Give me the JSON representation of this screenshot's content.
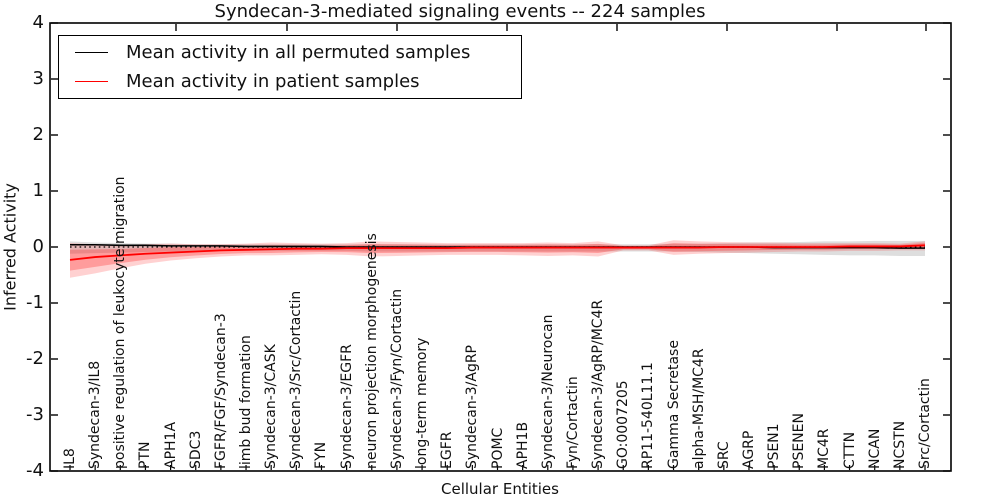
{
  "chart_data": {
    "type": "line",
    "title": "Syndecan-3-mediated signaling events -- 224 samples",
    "xlabel": "Cellular Entities",
    "ylabel": "Inferred Activity",
    "ylim": [
      -4,
      4
    ],
    "yticks": [
      4,
      3,
      2,
      1,
      0,
      -1,
      -2,
      -3,
      -4
    ],
    "grid": false,
    "legend_position": "upper left",
    "zero_line_style": "dotted",
    "categories": [
      "IL8",
      "Syndecan-3/IL8",
      "positive regulation of leukocyte migration",
      "PTN",
      "APH1A",
      "SDC3",
      "FGFR/FGF/Syndecan-3",
      "limb bud formation",
      "Syndecan-3/CASK",
      "Syndecan-3/Src/Cortactin",
      "FYN",
      "Syndecan-3/EGFR",
      "neuron projection morphogenesis",
      "Syndecan-3/Fyn/Cortactin",
      "long-term memory",
      "EGFR",
      "Syndecan-3/AgRP",
      "POMC",
      "APH1B",
      "Syndecan-3/Neurocan",
      "Fyn/Cortactin",
      "Syndecan-3/AgRP/MC4R",
      "GO:0007205",
      "RP11-540L11.1",
      "Gamma Secretase",
      "alpha-MSH/MC4R",
      "SRC",
      "AGRP",
      "PSEN1",
      "PSENEN",
      "MC4R",
      "CTTN",
      "NCAN",
      "NCSTN",
      "Src/Cortactin"
    ],
    "series": [
      {
        "name": "Mean activity in all permuted samples",
        "color": "#000000",
        "band_color": "rgba(0,0,0,0.13)",
        "values": [
          0.04,
          0.04,
          0.03,
          0.03,
          0.02,
          0.02,
          0.02,
          0.01,
          0.01,
          0.01,
          0.01,
          0,
          0,
          0,
          0,
          0,
          0,
          0,
          0,
          0,
          0,
          0,
          0,
          0,
          0,
          0,
          0,
          0,
          -0.01,
          -0.01,
          -0.01,
          -0.01,
          -0.01,
          -0.02,
          -0.02
        ],
        "band_upper": [
          0.1,
          0.08,
          0.07,
          0.06,
          0.06,
          0.05,
          0.05,
          0.05,
          0.05,
          0.05,
          0.05,
          0.05,
          0.05,
          0.05,
          0.05,
          0.05,
          0.05,
          0.05,
          0.05,
          0.05,
          0.05,
          0.05,
          0.05,
          0.05,
          0.06,
          0.06,
          0.07,
          0.08,
          0.08,
          0.09,
          0.1,
          0.1,
          0.11,
          0.11,
          0.11
        ],
        "band_lower": [
          -0.12,
          -0.11,
          -0.1,
          -0.09,
          -0.08,
          -0.08,
          -0.07,
          -0.07,
          -0.07,
          -0.07,
          -0.07,
          -0.07,
          -0.08,
          -0.08,
          -0.08,
          -0.08,
          -0.08,
          -0.08,
          -0.08,
          -0.08,
          -0.08,
          -0.08,
          -0.08,
          -0.08,
          -0.08,
          -0.09,
          -0.1,
          -0.11,
          -0.12,
          -0.13,
          -0.14,
          -0.15,
          -0.15,
          -0.16,
          -0.16
        ]
      },
      {
        "name": "Mean activity in patient samples",
        "color": "#ff0000",
        "band_color": "rgba(255,0,0,0.18)",
        "values": [
          -0.23,
          -0.18,
          -0.15,
          -0.12,
          -0.1,
          -0.08,
          -0.06,
          -0.05,
          -0.04,
          -0.03,
          -0.03,
          -0.02,
          -0.02,
          -0.02,
          -0.02,
          -0.02,
          -0.01,
          -0.01,
          -0.01,
          -0.01,
          -0.01,
          -0.01,
          -0.01,
          -0.01,
          -0.01,
          -0.01,
          0,
          0,
          0,
          0,
          0,
          0.01,
          0.01,
          0.01,
          0.03
        ],
        "band_upper": [
          0.07,
          0.05,
          0.04,
          0.05,
          0.06,
          0.05,
          0.05,
          0.06,
          0.08,
          0.07,
          0.06,
          0.07,
          0.1,
          0.09,
          0.08,
          0.07,
          0.07,
          0.07,
          0.07,
          0.08,
          0.07,
          0.1,
          0.03,
          0.03,
          0.12,
          0.1,
          0.09,
          0.08,
          0.08,
          0.07,
          0.07,
          0.07,
          0.07,
          0.06,
          0.1
        ],
        "band_lower": [
          -0.55,
          -0.47,
          -0.38,
          -0.3,
          -0.24,
          -0.2,
          -0.17,
          -0.15,
          -0.15,
          -0.14,
          -0.13,
          -0.14,
          -0.17,
          -0.16,
          -0.15,
          -0.14,
          -0.14,
          -0.14,
          -0.15,
          -0.16,
          -0.15,
          -0.17,
          -0.06,
          -0.06,
          -0.14,
          -0.12,
          -0.11,
          -0.1,
          -0.09,
          -0.08,
          -0.08,
          -0.07,
          -0.07,
          -0.06,
          -0.06
        ]
      }
    ]
  }
}
